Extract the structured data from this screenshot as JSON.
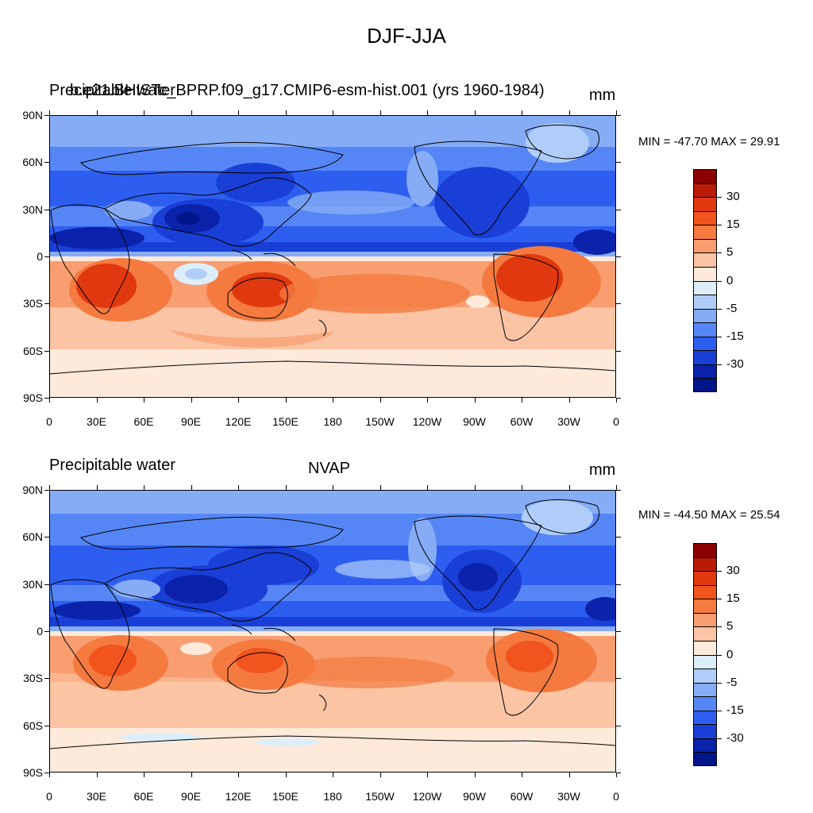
{
  "main_title": "DJF-JJA",
  "colors": {
    "scale": [
      "#8b0000",
      "#b81c06",
      "#e0380f",
      "#f2541e",
      "#f47a40",
      "#f89e70",
      "#fbc4a4",
      "#feeadb",
      "#dceefa",
      "#b0cdfa",
      "#86acf5",
      "#5686f5",
      "#2e5ef0",
      "#1a3fd6",
      "#0b22aa",
      "#001589"
    ]
  },
  "panels": [
    {
      "left_title": "Precipitable water",
      "center_title": "b.e21.BHISTc_BPRP.f09_g17.CMIP6-esm-hist.001 (yrs 1960-1984)",
      "right_title": "mm",
      "minmax": "MIN = -47.70 MAX =  29.91"
    },
    {
      "left_title": "Precipitable water",
      "center_title": "NVAP",
      "right_title": "mm",
      "minmax": "MIN = -44.50 MAX =  25.54"
    }
  ],
  "axes": {
    "lat_labels": [
      "90N",
      "60N",
      "30N",
      "0",
      "30S",
      "60S",
      "90S"
    ],
    "lon_labels": [
      "0",
      "30E",
      "60E",
      "90E",
      "120E",
      "150E",
      "180",
      "150W",
      "120W",
      "90W",
      "60W",
      "30W",
      "0"
    ]
  },
  "colorbar": {
    "labels": [
      "30",
      "15",
      "5",
      "0",
      "-5",
      "-15",
      "-30"
    ]
  }
}
